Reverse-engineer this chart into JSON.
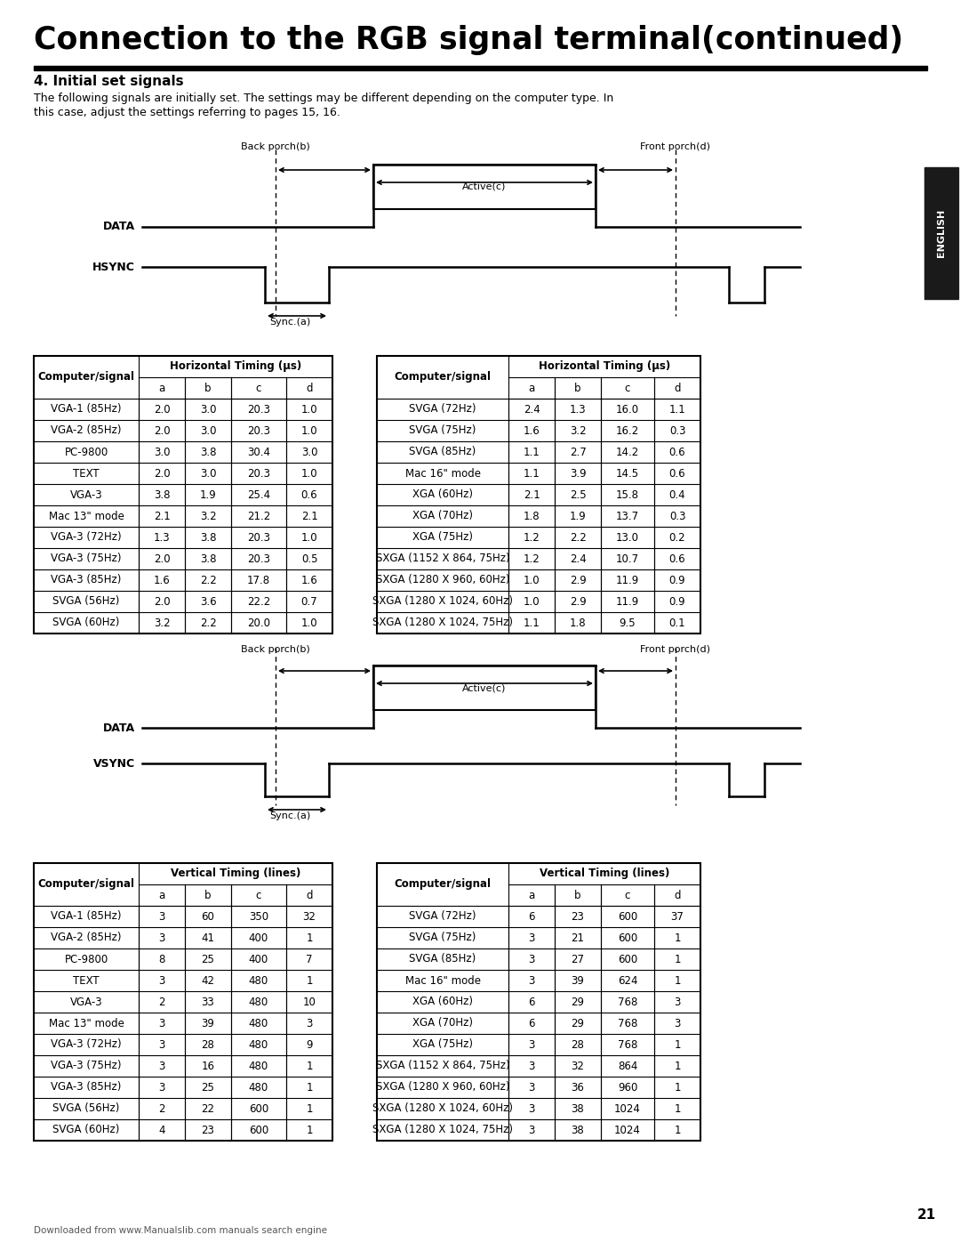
{
  "title": "Connection to the RGB signal terminal(continued)",
  "section": "4. Initial set signals",
  "para1": "The following signals are initially set. The settings may be different depending on the computer type. In",
  "para2": "this case, adjust the settings referring to pages 15, 16.",
  "page_number": "21",
  "footer": "Downloaded from www.Manualslib.com manuals search engine",
  "h_table_left_title": "Horizontal Timing (µs)",
  "h_table_left_rows": [
    [
      "VGA-1 (85Hz)",
      "2.0",
      "3.0",
      "20.3",
      "1.0"
    ],
    [
      "VGA-2 (85Hz)",
      "2.0",
      "3.0",
      "20.3",
      "1.0"
    ],
    [
      "PC-9800",
      "3.0",
      "3.8",
      "30.4",
      "3.0"
    ],
    [
      "TEXT",
      "2.0",
      "3.0",
      "20.3",
      "1.0"
    ],
    [
      "VGA-3",
      "3.8",
      "1.9",
      "25.4",
      "0.6"
    ],
    [
      "Mac 13\" mode",
      "2.1",
      "3.2",
      "21.2",
      "2.1"
    ],
    [
      "VGA-3 (72Hz)",
      "1.3",
      "3.8",
      "20.3",
      "1.0"
    ],
    [
      "VGA-3 (75Hz)",
      "2.0",
      "3.8",
      "20.3",
      "0.5"
    ],
    [
      "VGA-3 (85Hz)",
      "1.6",
      "2.2",
      "17.8",
      "1.6"
    ],
    [
      "SVGA (56Hz)",
      "2.0",
      "3.6",
      "22.2",
      "0.7"
    ],
    [
      "SVGA (60Hz)",
      "3.2",
      "2.2",
      "20.0",
      "1.0"
    ]
  ],
  "h_table_right_title": "Horizontal Timing (µs)",
  "h_table_right_rows": [
    [
      "SVGA (72Hz)",
      "2.4",
      "1.3",
      "16.0",
      "1.1"
    ],
    [
      "SVGA (75Hz)",
      "1.6",
      "3.2",
      "16.2",
      "0.3"
    ],
    [
      "SVGA (85Hz)",
      "1.1",
      "2.7",
      "14.2",
      "0.6"
    ],
    [
      "Mac 16\" mode",
      "1.1",
      "3.9",
      "14.5",
      "0.6"
    ],
    [
      "XGA (60Hz)",
      "2.1",
      "2.5",
      "15.8",
      "0.4"
    ],
    [
      "XGA (70Hz)",
      "1.8",
      "1.9",
      "13.7",
      "0.3"
    ],
    [
      "XGA (75Hz)",
      "1.2",
      "2.2",
      "13.0",
      "0.2"
    ],
    [
      "SXGA (1152 X 864, 75Hz)",
      "1.2",
      "2.4",
      "10.7",
      "0.6"
    ],
    [
      "SXGA (1280 X 960, 60Hz)",
      "1.0",
      "2.9",
      "11.9",
      "0.9"
    ],
    [
      "SXGA (1280 X 1024, 60Hz)",
      "1.0",
      "2.9",
      "11.9",
      "0.9"
    ],
    [
      "SXGA (1280 X 1024, 75Hz)",
      "1.1",
      "1.8",
      "9.5",
      "0.1"
    ]
  ],
  "v_table_left_title": "Vertical Timing (lines)",
  "v_table_left_rows": [
    [
      "VGA-1 (85Hz)",
      "3",
      "60",
      "350",
      "32"
    ],
    [
      "VGA-2 (85Hz)",
      "3",
      "41",
      "400",
      "1"
    ],
    [
      "PC-9800",
      "8",
      "25",
      "400",
      "7"
    ],
    [
      "TEXT",
      "3",
      "42",
      "480",
      "1"
    ],
    [
      "VGA-3",
      "2",
      "33",
      "480",
      "10"
    ],
    [
      "Mac 13\" mode",
      "3",
      "39",
      "480",
      "3"
    ],
    [
      "VGA-3 (72Hz)",
      "3",
      "28",
      "480",
      "9"
    ],
    [
      "VGA-3 (75Hz)",
      "3",
      "16",
      "480",
      "1"
    ],
    [
      "VGA-3 (85Hz)",
      "3",
      "25",
      "480",
      "1"
    ],
    [
      "SVGA (56Hz)",
      "2",
      "22",
      "600",
      "1"
    ],
    [
      "SVGA (60Hz)",
      "4",
      "23",
      "600",
      "1"
    ]
  ],
  "v_table_right_title": "Vertical Timing (lines)",
  "v_table_right_rows": [
    [
      "SVGA (72Hz)",
      "6",
      "23",
      "600",
      "37"
    ],
    [
      "SVGA (75Hz)",
      "3",
      "21",
      "600",
      "1"
    ],
    [
      "SVGA (85Hz)",
      "3",
      "27",
      "600",
      "1"
    ],
    [
      "Mac 16\" mode",
      "3",
      "39",
      "624",
      "1"
    ],
    [
      "XGA (60Hz)",
      "6",
      "29",
      "768",
      "3"
    ],
    [
      "XGA (70Hz)",
      "6",
      "29",
      "768",
      "3"
    ],
    [
      "XGA (75Hz)",
      "3",
      "28",
      "768",
      "1"
    ],
    [
      "SXGA (1152 X 864, 75Hz)",
      "3",
      "32",
      "864",
      "1"
    ],
    [
      "SXGA (1280 X 960, 60Hz)",
      "3",
      "36",
      "960",
      "1"
    ],
    [
      "SXGA (1280 X 1024, 60Hz)",
      "3",
      "38",
      "1024",
      "1"
    ],
    [
      "SXGA (1280 X 1024, 75Hz)",
      "3",
      "38",
      "1024",
      "1"
    ]
  ]
}
